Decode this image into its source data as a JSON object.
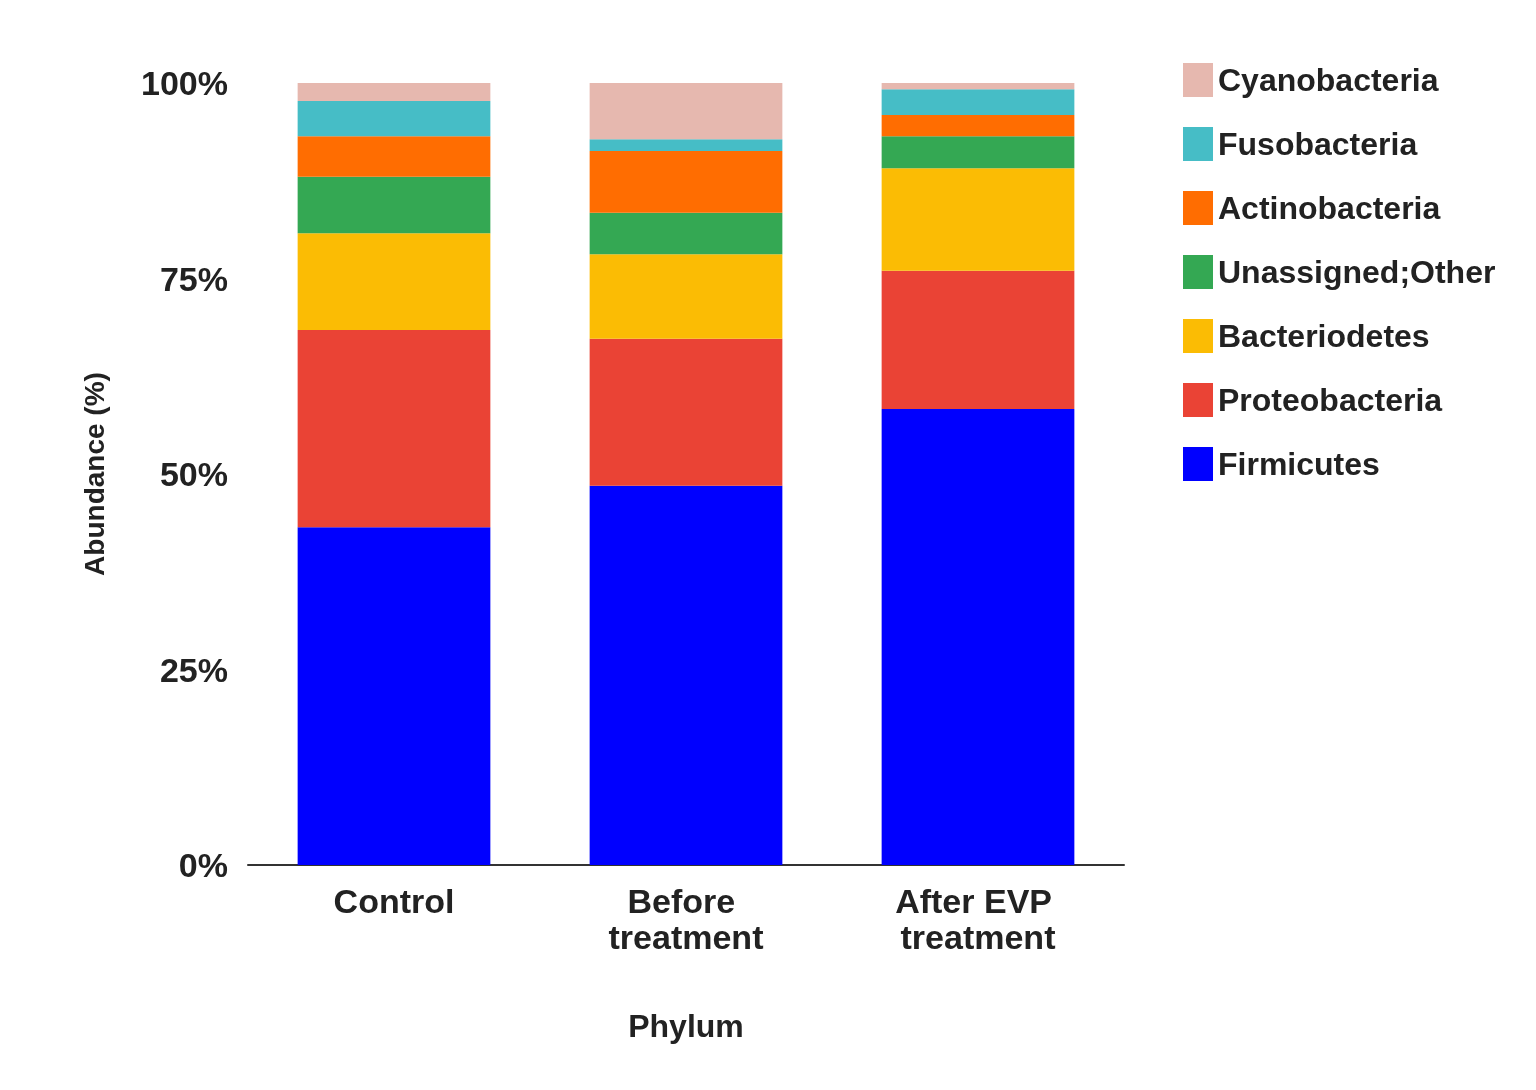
{
  "chart_data": {
    "type": "bar",
    "stacked": true,
    "xlabel": "Phylum",
    "ylabel": "Abundance (%)",
    "categories": [
      "Control",
      "Before treatment",
      "After EVP treatment"
    ],
    "series": [
      {
        "name": "Firmicutes",
        "color": "#0000ff",
        "values": [
          43.2,
          48.5,
          58.3
        ]
      },
      {
        "name": "Proteobacteria",
        "color": "#ea4335",
        "values": [
          25.2,
          18.8,
          17.7
        ]
      },
      {
        "name": "Bacteriodetes",
        "color": "#fbbc04",
        "values": [
          12.4,
          10.8,
          13.1
        ]
      },
      {
        "name": "Unassigned;Other",
        "color": "#34a853",
        "values": [
          7.2,
          5.3,
          4.1
        ]
      },
      {
        "name": "Actinobacteria",
        "color": "#ff6d01",
        "values": [
          5.2,
          7.9,
          2.7
        ]
      },
      {
        "name": "Fusobacteria",
        "color": "#46bdc6",
        "values": [
          4.5,
          1.5,
          3.3
        ]
      },
      {
        "name": "Cyanobacteria",
        "color": "#e6b8af",
        "values": [
          2.3,
          7.2,
          0.8
        ]
      }
    ],
    "ylim": [
      0,
      100
    ],
    "yticks": [
      {
        "value": 0,
        "label": "0%"
      },
      {
        "value": 25,
        "label": "25%"
      },
      {
        "value": 50,
        "label": "50%"
      },
      {
        "value": 75,
        "label": "75%"
      },
      {
        "value": 100,
        "label": "100%"
      }
    ],
    "grid": false,
    "legend": "top right"
  }
}
